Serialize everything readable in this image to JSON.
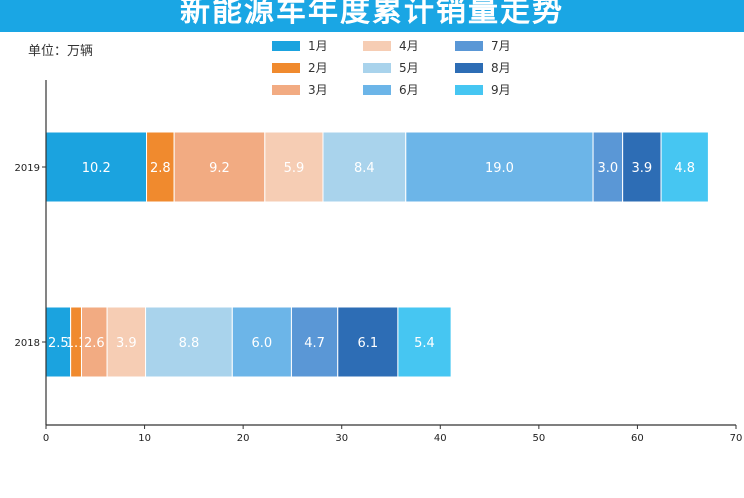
{
  "title": "新能源车年度累计销量走势",
  "unit_label": "单位：万辆",
  "chart_data": {
    "type": "bar",
    "orientation": "horizontal",
    "stacked": true,
    "categories": [
      "2019",
      "2018"
    ],
    "xlim": [
      0,
      70
    ],
    "xticks": [
      0,
      10,
      20,
      30,
      40,
      50,
      60,
      70
    ],
    "grid": false,
    "legend_position": "top-center",
    "series": [
      {
        "name": "1月",
        "color": "#1ba3df",
        "values": [
          10.2,
          2.5
        ]
      },
      {
        "name": "2月",
        "color": "#f08a2e",
        "values": [
          2.8,
          1.1
        ]
      },
      {
        "name": "3月",
        "color": "#f2ab82",
        "values": [
          9.2,
          2.6
        ]
      },
      {
        "name": "4月",
        "color": "#f6cdb4",
        "values": [
          5.9,
          3.9
        ]
      },
      {
        "name": "5月",
        "color": "#a9d3ec",
        "values": [
          8.4,
          8.8
        ]
      },
      {
        "name": "6月",
        "color": "#6cb5e8",
        "values": [
          19.0,
          6.0
        ]
      },
      {
        "name": "7月",
        "color": "#5a97d6",
        "values": [
          3.0,
          4.7
        ]
      },
      {
        "name": "8月",
        "color": "#2d6db5",
        "values": [
          3.9,
          6.1
        ]
      },
      {
        "name": "9月",
        "color": "#46c6f2",
        "values": [
          4.8,
          5.4
        ]
      }
    ],
    "data_labels": [
      [
        "10.2",
        "2.8",
        "9.2",
        "5.9",
        "8.4",
        "19.0",
        "3.0",
        "3.9",
        "4.8"
      ],
      [
        "2.5",
        "1.1",
        "2.6",
        "3.9",
        "8.8",
        "6.0",
        "4.7",
        "6.1",
        "5.4"
      ]
    ]
  }
}
